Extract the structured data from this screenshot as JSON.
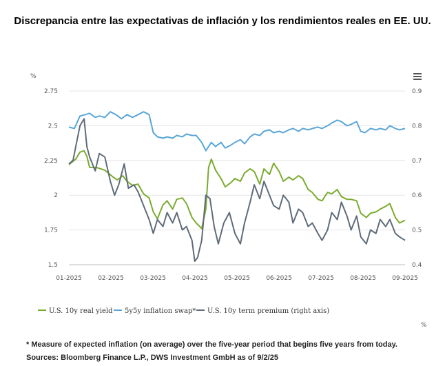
{
  "title": "Discrepancia entre las expectativas de inflación y los rendimientos reales en EE. UU.",
  "footnote": "* Measure of expected inflation (on average) over the five-year period that begins five years from today.",
  "source": "Sources: Bloomberg Finance L.P., DWS Investment GmbH as of 9/2/25",
  "menu_icon": "hamburger-menu-icon",
  "chart_data": {
    "type": "line",
    "left_axis_unit": "%",
    "right_axis_unit": "%",
    "ylim_left": [
      1.5,
      2.75
    ],
    "ylim_right": [
      0.4,
      0.9
    ],
    "yticks_left": [
      "2.75",
      "2.5",
      "2.25",
      "2",
      "1.75",
      "1.5"
    ],
    "yticks_right": [
      "0.9",
      "0.8",
      "0.7",
      "0.6",
      "0.5",
      "0.4"
    ],
    "xticks": [
      "01-2025",
      "02-2025",
      "03-2025",
      "04-2025",
      "05-2025",
      "06-2025",
      "07-2025",
      "08-2025",
      "09-2025"
    ],
    "x_start": "2025-01-02",
    "x_end": "2025-09-02",
    "grid": "horizontal",
    "legend_position": "bottom",
    "series": [
      {
        "name": "U.S. 10y real yield",
        "axis": "left",
        "color": "#7aab2e",
        "points": [
          [
            "2025-01-02",
            2.22
          ],
          [
            "2025-01-07",
            2.26
          ],
          [
            "2025-01-10",
            2.31
          ],
          [
            "2025-01-13",
            2.32
          ],
          [
            "2025-01-15",
            2.28
          ],
          [
            "2025-01-17",
            2.2
          ],
          [
            "2025-01-22",
            2.2
          ],
          [
            "2025-01-28",
            2.18
          ],
          [
            "2025-02-03",
            2.13
          ],
          [
            "2025-02-06",
            2.11
          ],
          [
            "2025-02-10",
            2.14
          ],
          [
            "2025-02-13",
            2.1
          ],
          [
            "2025-02-17",
            2.07
          ],
          [
            "2025-02-21",
            2.08
          ],
          [
            "2025-02-25",
            2.01
          ],
          [
            "2025-03-01",
            1.98
          ],
          [
            "2025-03-04",
            1.88
          ],
          [
            "2025-03-07",
            1.83
          ],
          [
            "2025-03-11",
            1.93
          ],
          [
            "2025-03-14",
            1.96
          ],
          [
            "2025-03-18",
            1.9
          ],
          [
            "2025-03-21",
            1.97
          ],
          [
            "2025-03-25",
            1.98
          ],
          [
            "2025-03-28",
            1.94
          ],
          [
            "2025-04-01",
            1.84
          ],
          [
            "2025-04-04",
            1.8
          ],
          [
            "2025-04-08",
            1.76
          ],
          [
            "2025-04-11",
            1.9
          ],
          [
            "2025-04-13",
            2.2
          ],
          [
            "2025-04-15",
            2.26
          ],
          [
            "2025-04-18",
            2.18
          ],
          [
            "2025-04-22",
            2.12
          ],
          [
            "2025-04-25",
            2.06
          ],
          [
            "2025-04-29",
            2.09
          ],
          [
            "2025-05-02",
            2.12
          ],
          [
            "2025-05-06",
            2.1
          ],
          [
            "2025-05-09",
            2.16
          ],
          [
            "2025-05-13",
            2.19
          ],
          [
            "2025-05-16",
            2.17
          ],
          [
            "2025-05-20",
            2.08
          ],
          [
            "2025-05-23",
            2.19
          ],
          [
            "2025-05-27",
            2.15
          ],
          [
            "2025-05-30",
            2.23
          ],
          [
            "2025-06-03",
            2.17
          ],
          [
            "2025-06-06",
            2.1
          ],
          [
            "2025-06-10",
            2.13
          ],
          [
            "2025-06-13",
            2.11
          ],
          [
            "2025-06-17",
            2.14
          ],
          [
            "2025-06-20",
            2.12
          ],
          [
            "2025-06-24",
            2.04
          ],
          [
            "2025-06-27",
            2.02
          ],
          [
            "2025-07-01",
            1.97
          ],
          [
            "2025-07-04",
            1.96
          ],
          [
            "2025-07-08",
            2.02
          ],
          [
            "2025-07-11",
            2.01
          ],
          [
            "2025-07-15",
            2.04
          ],
          [
            "2025-07-18",
            1.99
          ],
          [
            "2025-07-22",
            1.97
          ],
          [
            "2025-07-25",
            1.97
          ],
          [
            "2025-07-29",
            1.96
          ],
          [
            "2025-08-01",
            1.87
          ],
          [
            "2025-08-05",
            1.84
          ],
          [
            "2025-08-08",
            1.87
          ],
          [
            "2025-08-12",
            1.88
          ],
          [
            "2025-08-15",
            1.9
          ],
          [
            "2025-08-19",
            1.92
          ],
          [
            "2025-08-22",
            1.94
          ],
          [
            "2025-08-26",
            1.84
          ],
          [
            "2025-08-29",
            1.8
          ],
          [
            "2025-09-02",
            1.82
          ]
        ]
      },
      {
        "name": "5y5y inflation swap*",
        "axis": "left",
        "color": "#5aa6d8",
        "points": [
          [
            "2025-01-02",
            2.49
          ],
          [
            "2025-01-06",
            2.48
          ],
          [
            "2025-01-10",
            2.57
          ],
          [
            "2025-01-14",
            2.58
          ],
          [
            "2025-01-17",
            2.59
          ],
          [
            "2025-01-21",
            2.56
          ],
          [
            "2025-01-24",
            2.57
          ],
          [
            "2025-01-28",
            2.56
          ],
          [
            "2025-02-01",
            2.6
          ],
          [
            "2025-02-05",
            2.58
          ],
          [
            "2025-02-09",
            2.55
          ],
          [
            "2025-02-13",
            2.58
          ],
          [
            "2025-02-17",
            2.56
          ],
          [
            "2025-02-21",
            2.58
          ],
          [
            "2025-02-25",
            2.6
          ],
          [
            "2025-03-01",
            2.58
          ],
          [
            "2025-03-04",
            2.45
          ],
          [
            "2025-03-07",
            2.42
          ],
          [
            "2025-03-11",
            2.41
          ],
          [
            "2025-03-14",
            2.42
          ],
          [
            "2025-03-18",
            2.41
          ],
          [
            "2025-03-21",
            2.43
          ],
          [
            "2025-03-25",
            2.42
          ],
          [
            "2025-03-28",
            2.44
          ],
          [
            "2025-04-01",
            2.43
          ],
          [
            "2025-04-04",
            2.43
          ],
          [
            "2025-04-08",
            2.38
          ],
          [
            "2025-04-11",
            2.32
          ],
          [
            "2025-04-15",
            2.38
          ],
          [
            "2025-04-18",
            2.35
          ],
          [
            "2025-04-22",
            2.38
          ],
          [
            "2025-04-25",
            2.34
          ],
          [
            "2025-04-29",
            2.36
          ],
          [
            "2025-05-02",
            2.38
          ],
          [
            "2025-05-06",
            2.4
          ],
          [
            "2025-05-09",
            2.37
          ],
          [
            "2025-05-13",
            2.42
          ],
          [
            "2025-05-16",
            2.44
          ],
          [
            "2025-05-20",
            2.43
          ],
          [
            "2025-05-23",
            2.46
          ],
          [
            "2025-05-27",
            2.47
          ],
          [
            "2025-05-30",
            2.45
          ],
          [
            "2025-06-03",
            2.46
          ],
          [
            "2025-06-06",
            2.45
          ],
          [
            "2025-06-10",
            2.47
          ],
          [
            "2025-06-13",
            2.48
          ],
          [
            "2025-06-17",
            2.46
          ],
          [
            "2025-06-20",
            2.48
          ],
          [
            "2025-06-24",
            2.47
          ],
          [
            "2025-06-27",
            2.48
          ],
          [
            "2025-07-01",
            2.49
          ],
          [
            "2025-07-04",
            2.48
          ],
          [
            "2025-07-08",
            2.5
          ],
          [
            "2025-07-11",
            2.52
          ],
          [
            "2025-07-15",
            2.54
          ],
          [
            "2025-07-18",
            2.53
          ],
          [
            "2025-07-22",
            2.5
          ],
          [
            "2025-07-25",
            2.51
          ],
          [
            "2025-07-29",
            2.53
          ],
          [
            "2025-08-01",
            2.46
          ],
          [
            "2025-08-04",
            2.45
          ],
          [
            "2025-08-08",
            2.48
          ],
          [
            "2025-08-12",
            2.47
          ],
          [
            "2025-08-15",
            2.48
          ],
          [
            "2025-08-19",
            2.47
          ],
          [
            "2025-08-22",
            2.5
          ],
          [
            "2025-08-26",
            2.48
          ],
          [
            "2025-08-29",
            2.47
          ],
          [
            "2025-09-02",
            2.48
          ]
        ]
      },
      {
        "name": "U.S. 10y term premium (right axis)",
        "axis": "right",
        "color": "#5f6b78",
        "points": [
          [
            "2025-01-02",
            0.69
          ],
          [
            "2025-01-05",
            0.7
          ],
          [
            "2025-01-08",
            0.76
          ],
          [
            "2025-01-10",
            0.8
          ],
          [
            "2025-01-13",
            0.82
          ],
          [
            "2025-01-15",
            0.74
          ],
          [
            "2025-01-17",
            0.71
          ],
          [
            "2025-01-21",
            0.67
          ],
          [
            "2025-01-24",
            0.72
          ],
          [
            "2025-01-28",
            0.71
          ],
          [
            "2025-02-01",
            0.64
          ],
          [
            "2025-02-04",
            0.6
          ],
          [
            "2025-02-07",
            0.63
          ],
          [
            "2025-02-11",
            0.69
          ],
          [
            "2025-02-14",
            0.62
          ],
          [
            "2025-02-18",
            0.63
          ],
          [
            "2025-02-21",
            0.61
          ],
          [
            "2025-02-25",
            0.57
          ],
          [
            "2025-03-01",
            0.53
          ],
          [
            "2025-03-04",
            0.49
          ],
          [
            "2025-03-07",
            0.53
          ],
          [
            "2025-03-11",
            0.51
          ],
          [
            "2025-03-14",
            0.55
          ],
          [
            "2025-03-18",
            0.52
          ],
          [
            "2025-03-21",
            0.55
          ],
          [
            "2025-03-25",
            0.5
          ],
          [
            "2025-03-28",
            0.51
          ],
          [
            "2025-04-01",
            0.47
          ],
          [
            "2025-04-03",
            0.41
          ],
          [
            "2025-04-05",
            0.42
          ],
          [
            "2025-04-08",
            0.47
          ],
          [
            "2025-04-11",
            0.6
          ],
          [
            "2025-04-14",
            0.59
          ],
          [
            "2025-04-17",
            0.51
          ],
          [
            "2025-04-20",
            0.46
          ],
          [
            "2025-04-24",
            0.52
          ],
          [
            "2025-04-28",
            0.55
          ],
          [
            "2025-05-02",
            0.49
          ],
          [
            "2025-05-06",
            0.46
          ],
          [
            "2025-05-09",
            0.52
          ],
          [
            "2025-05-13",
            0.58
          ],
          [
            "2025-05-16",
            0.63
          ],
          [
            "2025-05-20",
            0.59
          ],
          [
            "2025-05-23",
            0.64
          ],
          [
            "2025-05-27",
            0.6
          ],
          [
            "2025-05-30",
            0.57
          ],
          [
            "2025-06-03",
            0.56
          ],
          [
            "2025-06-06",
            0.6
          ],
          [
            "2025-06-10",
            0.58
          ],
          [
            "2025-06-13",
            0.52
          ],
          [
            "2025-06-17",
            0.56
          ],
          [
            "2025-06-20",
            0.55
          ],
          [
            "2025-06-24",
            0.51
          ],
          [
            "2025-06-27",
            0.52
          ],
          [
            "2025-07-01",
            0.49
          ],
          [
            "2025-07-04",
            0.47
          ],
          [
            "2025-07-08",
            0.5
          ],
          [
            "2025-07-11",
            0.55
          ],
          [
            "2025-07-15",
            0.53
          ],
          [
            "2025-07-18",
            0.58
          ],
          [
            "2025-07-22",
            0.54
          ],
          [
            "2025-07-25",
            0.5
          ],
          [
            "2025-07-29",
            0.54
          ],
          [
            "2025-08-01",
            0.48
          ],
          [
            "2025-08-05",
            0.46
          ],
          [
            "2025-08-08",
            0.5
          ],
          [
            "2025-08-12",
            0.49
          ],
          [
            "2025-08-15",
            0.53
          ],
          [
            "2025-08-19",
            0.51
          ],
          [
            "2025-08-22",
            0.53
          ],
          [
            "2025-08-26",
            0.49
          ],
          [
            "2025-08-29",
            0.48
          ],
          [
            "2025-09-02",
            0.47
          ]
        ]
      }
    ]
  }
}
